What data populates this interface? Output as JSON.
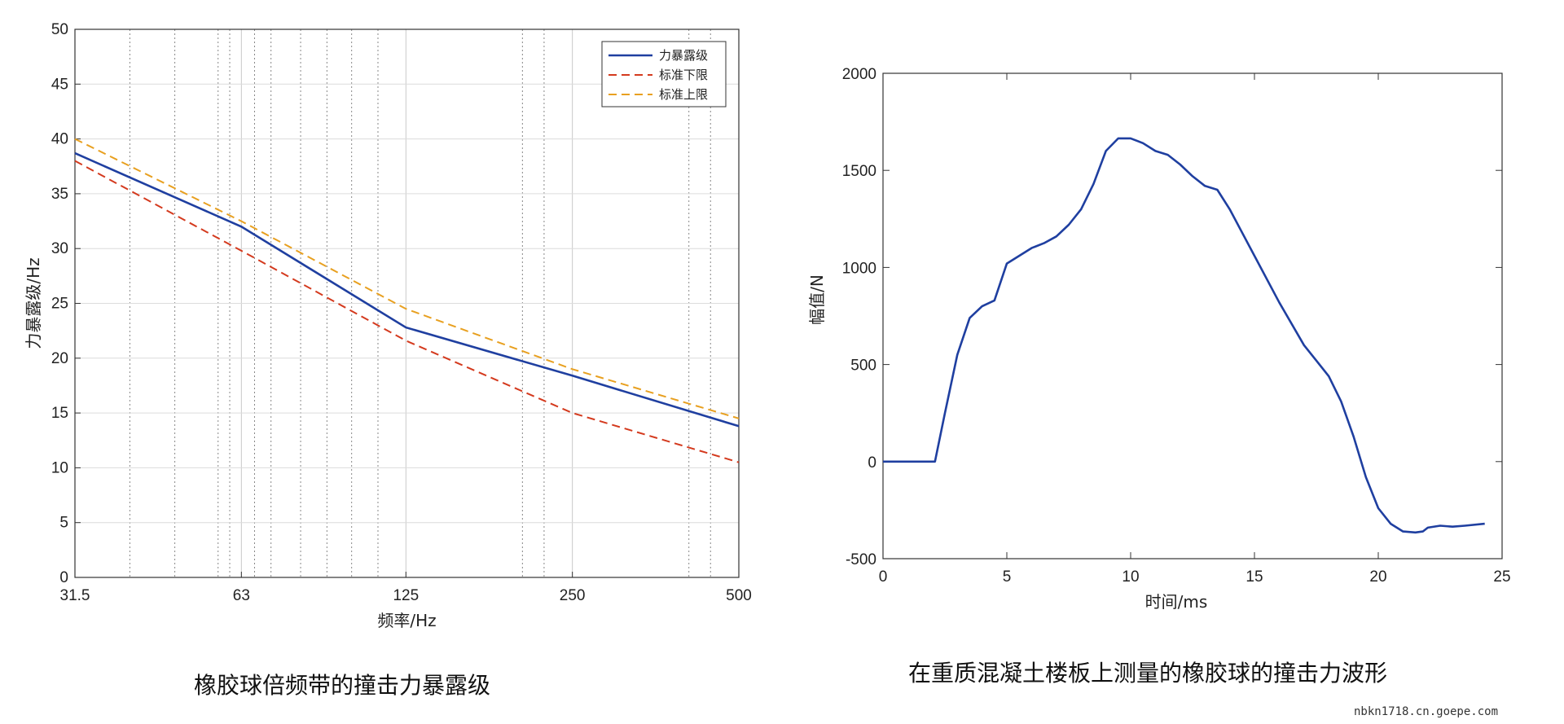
{
  "chart_data": [
    {
      "type": "line",
      "xscale": "log",
      "x": [
        31.5,
        63,
        125,
        250,
        500
      ],
      "tick_labels": [
        "31.5",
        "63",
        "125",
        "250",
        "500"
      ],
      "xlabel": "频率/Hz",
      "ylabel": "力暴露级/Hz",
      "ylim": [
        0,
        50
      ],
      "yticks": [
        "0",
        "5",
        "10",
        "15",
        "20",
        "25",
        "30",
        "35",
        "40",
        "45",
        "50"
      ],
      "grid": true,
      "legend_position": "top-right",
      "series": [
        {
          "name": "力暴露级",
          "color": "#1f3fa0",
          "dash": "solid",
          "values": [
            38.7,
            32.0,
            22.8,
            18.4,
            13.8
          ]
        },
        {
          "name": "标准下限",
          "color": "#d43a1e",
          "dash": "dashed",
          "values": [
            38.0,
            29.8,
            21.6,
            15.0,
            10.5
          ]
        },
        {
          "name": "标准上限",
          "color": "#e8a020",
          "dash": "dashed",
          "values": [
            40.0,
            32.5,
            24.5,
            19.0,
            14.5
          ]
        }
      ],
      "caption": "橡胶球倍频带的撞击力暴露级"
    },
    {
      "type": "line",
      "xlabel": "时间/ms",
      "ylabel": "幅值/N",
      "xlim": [
        0,
        25
      ],
      "ylim": [
        -500,
        2000
      ],
      "xticks": [
        "0",
        "5",
        "10",
        "15",
        "20",
        "25"
      ],
      "yticks": [
        "-500",
        "0",
        "500",
        "1000",
        "1500",
        "2000"
      ],
      "grid": false,
      "series": [
        {
          "color": "#1f3fa0",
          "x": [
            0,
            1,
            2.1,
            2.5,
            3,
            3.5,
            4,
            4.5,
            5,
            5.5,
            6,
            6.5,
            7,
            7.5,
            8,
            8.5,
            9,
            9.5,
            10,
            10.5,
            11,
            11.5,
            12,
            12.5,
            13,
            13.5,
            14,
            15,
            16,
            17,
            17.5,
            18,
            18.5,
            19,
            19.5,
            20,
            20.5,
            21,
            21.5,
            21.8,
            22,
            22.5,
            23,
            23.5,
            24.3
          ],
          "values": [
            0,
            0,
            0,
            250,
            550,
            740,
            800,
            830,
            1020,
            1060,
            1100,
            1125,
            1160,
            1220,
            1300,
            1430,
            1600,
            1665,
            1665,
            1640,
            1600,
            1580,
            1530,
            1470,
            1420,
            1400,
            1300,
            1060,
            820,
            600,
            520,
            440,
            310,
            130,
            -80,
            -240,
            -320,
            -360,
            -365,
            -360,
            -340,
            -330,
            -335,
            -330,
            -320
          ]
        }
      ],
      "caption": "在重质混凝土楼板上测量的橡胶球的撞击力波形"
    }
  ],
  "watermark": "nbkn1718.cn.goepe.com"
}
